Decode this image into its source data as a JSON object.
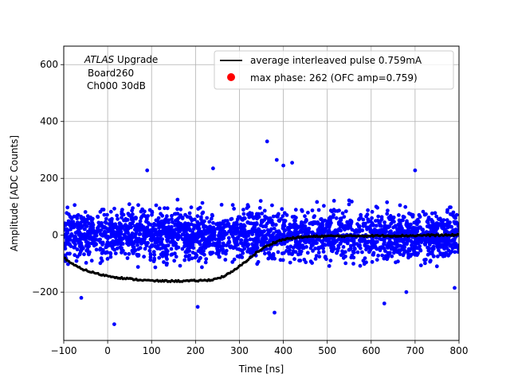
{
  "chart_data": {
    "type": "scatter",
    "xlabel": "Time [ns]",
    "ylabel": "Amplitude [ADC Counts]",
    "xlim": [
      -100,
      800
    ],
    "ylim": [
      -370,
      665
    ],
    "xticks": [
      -100,
      0,
      100,
      200,
      300,
      400,
      500,
      600,
      700,
      800
    ],
    "yticks": [
      -200,
      0,
      200,
      400,
      600
    ],
    "xtick_labels": [
      "−100",
      "0",
      "100",
      "200",
      "300",
      "400",
      "500",
      "600",
      "700",
      "800"
    ],
    "ytick_labels": [
      "−200",
      "0",
      "200",
      "400",
      "600"
    ],
    "grid": true,
    "legend_position": "top-right",
    "annotation": {
      "line1_italic": "ATLAS",
      "line1_rest": " Upgrade",
      "line2": "Board260",
      "line3": "Ch000 30dB"
    },
    "legend": [
      {
        "label": "average interleaved pulse 0.759mA",
        "marker": "line",
        "color": "#000000"
      },
      {
        "label": "max phase: 262 (OFC amp=0.759)",
        "marker": "dot",
        "color": "#ff0000"
      }
    ],
    "series": [
      {
        "name": "average interleaved pulse 0.759mA",
        "kind": "line",
        "color": "#000000",
        "x": [
          -100,
          -80,
          -60,
          -40,
          -20,
          0,
          20,
          40,
          60,
          80,
          100,
          120,
          140,
          160,
          180,
          200,
          220,
          240,
          260,
          280,
          300,
          320,
          340,
          360,
          380,
          400,
          420,
          440,
          460,
          480,
          500,
          540,
          580,
          620,
          660,
          700,
          740,
          780,
          800
        ],
        "y": [
          -78,
          -102,
          -118,
          -128,
          -137,
          -143,
          -148,
          -152,
          -155,
          -158,
          -160,
          -161,
          -161,
          -161,
          -161,
          -160,
          -159,
          -156,
          -147,
          -132,
          -110,
          -85,
          -60,
          -40,
          -25,
          -15,
          -10,
          -7,
          -5,
          -4,
          -3,
          -3,
          -2,
          -2,
          -2,
          -1,
          0,
          0,
          2
        ]
      },
      {
        "name": "max phase: 262 (OFC amp=0.759)",
        "kind": "points",
        "color": "#ff0000",
        "x": [],
        "y": []
      },
      {
        "name": "samples",
        "kind": "scatter",
        "color": "#0000ff",
        "band_halfwidth": 90,
        "outliers": [
          {
            "x": 363,
            "y": 330
          },
          {
            "x": 385,
            "y": 265
          },
          {
            "x": 400,
            "y": 245
          },
          {
            "x": 420,
            "y": 255
          },
          {
            "x": 380,
            "y": -272
          },
          {
            "x": 15,
            "y": -313
          },
          {
            "x": -60,
            "y": -220
          },
          {
            "x": 205,
            "y": -252
          },
          {
            "x": 240,
            "y": 235
          },
          {
            "x": 90,
            "y": 228
          },
          {
            "x": 700,
            "y": 228
          },
          {
            "x": 630,
            "y": -240
          },
          {
            "x": 680,
            "y": -200
          },
          {
            "x": 790,
            "y": -185
          }
        ]
      }
    ]
  }
}
